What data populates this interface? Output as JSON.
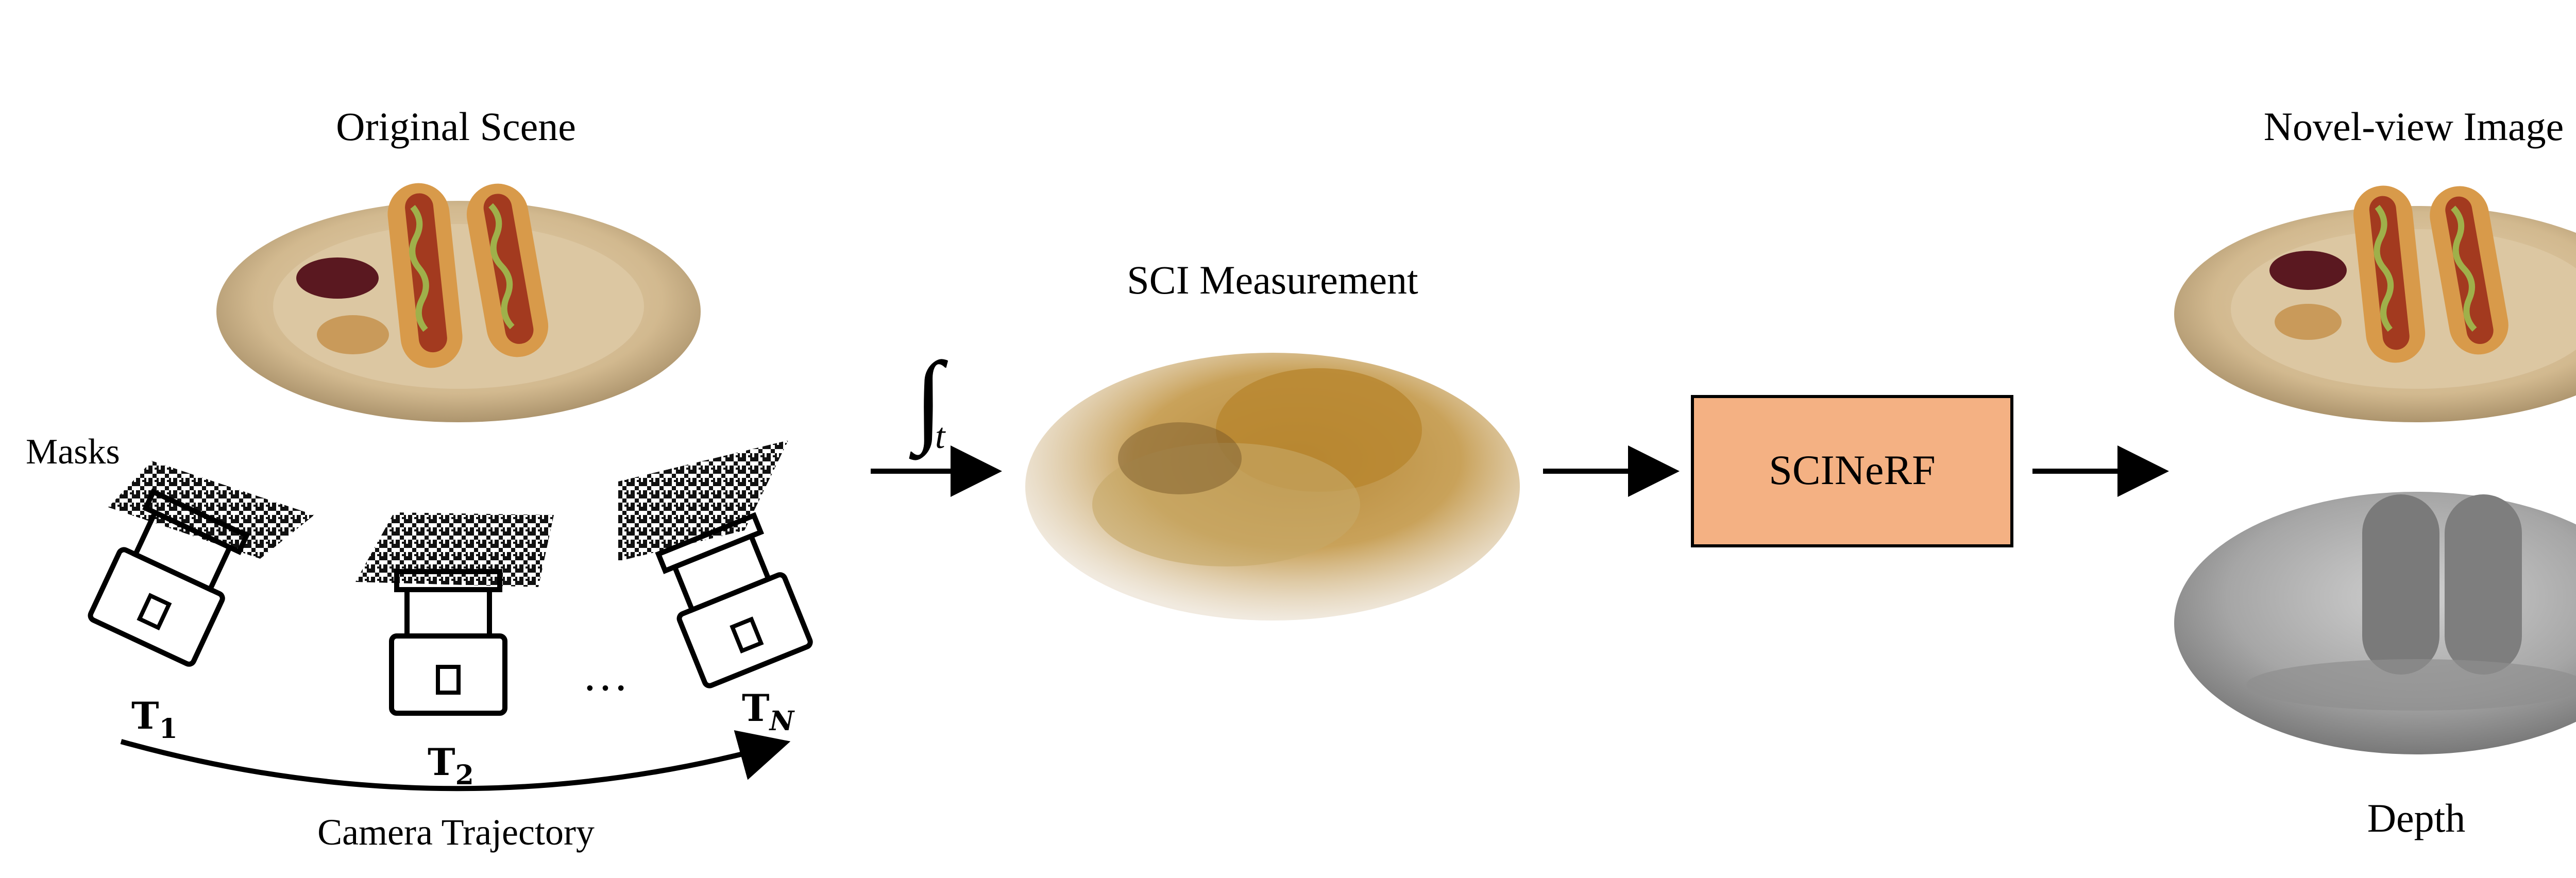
{
  "labels": {
    "original_scene": "Original Scene",
    "masks": "Masks",
    "camera_trajectory": "Camera Trajectory",
    "sci_measurement": "SCI Measurement",
    "novel_view_image": "Novel-view Image",
    "depth": "Depth",
    "model_box": "SCINeRF",
    "integral_symbol": "∫",
    "integral_subscript": "t",
    "ellipsis": "…"
  },
  "poses": [
    {
      "name": "T",
      "sub": "1"
    },
    {
      "name": "T",
      "sub": "2"
    },
    {
      "name": "T",
      "sub": "N"
    }
  ],
  "colors": {
    "model_box_fill": "#F4B183",
    "plate": "#D8C3A0",
    "bun": "#D89A4A",
    "sausage": "#A33A1F",
    "mustard": "#9FB04A",
    "ketchup": "#5A1820",
    "mask_black": "#111111"
  }
}
